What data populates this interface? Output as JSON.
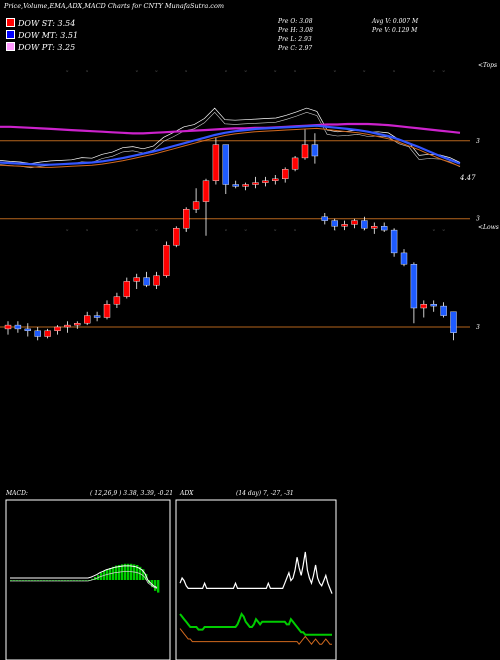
{
  "header": {
    "title": "Price,Volume,EMA,ADX,MACD Charts for CNTY MunafaSutra.com"
  },
  "legend": [
    {
      "label": "DOW ST: 3.54",
      "color": "#ff0000"
    },
    {
      "label": "DOW MT: 3.51",
      "color": "#0000ff"
    },
    {
      "label": "DOW PT: 3.25",
      "color": "#ff99ff"
    }
  ],
  "quote": {
    "open": "Pre   O: 3.08",
    "high": "Pre   H: 3.08",
    "low": "Pre   L: 2.93",
    "close": "Pre   C: 2.97",
    "avg_volume": "Avg V: 0.007 M",
    "pre_volume": "Pre   V: 0.129 M"
  },
  "ema_panel": {
    "top_label": "<Tops",
    "price_label": "4.47"
  },
  "price_panel": {
    "bottom_label": "<Lows",
    "levels": [
      {
        "label": "3",
        "value": 3.98
      },
      {
        "label": "3",
        "value": 3.57
      },
      {
        "label": "3",
        "value": 3.0
      }
    ]
  },
  "macd_panel": {
    "label": "MACD:",
    "params": "( 12,26,9 ) 3.38, 3.39, -0.21"
  },
  "adx_panel": {
    "label": "ADX",
    "params": "(14  day) 7, -27, -31"
  },
  "colors": {
    "up": "#ff0000",
    "down": "#1e5bff",
    "level": "#b5651d",
    "ema_fast": "#3355ff",
    "ema_slow": "#cc22cc",
    "macd_hist": "#00cc00"
  },
  "chart_data": [
    {
      "type": "candlestick",
      "series": [
        {
          "values": [
            [
              2.99,
              3.03,
              2.96,
              3.01
            ],
            [
              3.01,
              3.03,
              2.97,
              2.99
            ],
            [
              2.99,
              3.02,
              2.95,
              2.98
            ],
            [
              2.98,
              3.0,
              2.93,
              2.95
            ],
            [
              2.95,
              2.99,
              2.94,
              2.98
            ],
            [
              2.98,
              3.01,
              2.96,
              3.0
            ],
            [
              3.0,
              3.03,
              2.97,
              3.01
            ],
            [
              3.01,
              3.03,
              2.99,
              3.02
            ],
            [
              3.02,
              3.08,
              3.01,
              3.06
            ],
            [
              3.06,
              3.08,
              3.03,
              3.05
            ],
            [
              3.05,
              3.14,
              3.04,
              3.12
            ],
            [
              3.12,
              3.18,
              3.1,
              3.16
            ],
            [
              3.16,
              3.26,
              3.15,
              3.24
            ],
            [
              3.24,
              3.28,
              3.2,
              3.26
            ],
            [
              3.26,
              3.29,
              3.21,
              3.22
            ],
            [
              3.22,
              3.29,
              3.2,
              3.27
            ],
            [
              3.27,
              3.45,
              3.26,
              3.43
            ],
            [
              3.43,
              3.53,
              3.42,
              3.52
            ],
            [
              3.52,
              3.63,
              3.5,
              3.62
            ],
            [
              3.62,
              3.73,
              3.6,
              3.66
            ],
            [
              3.66,
              3.78,
              3.48,
              3.77
            ],
            [
              3.77,
              4.0,
              3.75,
              3.96
            ],
            [
              3.96,
              3.96,
              3.7,
              3.75
            ],
            [
              3.75,
              3.77,
              3.73,
              3.74
            ],
            [
              3.74,
              3.76,
              3.72,
              3.75
            ],
            [
              3.75,
              3.79,
              3.73,
              3.76
            ],
            [
              3.76,
              3.79,
              3.74,
              3.77
            ],
            [
              3.77,
              3.8,
              3.75,
              3.78
            ],
            [
              3.78,
              3.84,
              3.76,
              3.83
            ],
            [
              3.83,
              3.9,
              3.82,
              3.89
            ],
            [
              3.89,
              4.04,
              3.88,
              3.96
            ],
            [
              3.96,
              4.02,
              3.86,
              3.9
            ],
            [
              3.58,
              3.6,
              3.54,
              3.56
            ],
            [
              3.56,
              3.57,
              3.51,
              3.53
            ],
            [
              3.53,
              3.56,
              3.51,
              3.54
            ],
            [
              3.54,
              3.57,
              3.52,
              3.56
            ],
            [
              3.56,
              3.58,
              3.51,
              3.52
            ],
            [
              3.52,
              3.55,
              3.49,
              3.53
            ],
            [
              3.53,
              3.55,
              3.5,
              3.51
            ],
            [
              3.51,
              3.52,
              3.37,
              3.39
            ],
            [
              3.39,
              3.41,
              3.32,
              3.33
            ],
            [
              3.33,
              3.34,
              3.02,
              3.1
            ],
            [
              3.1,
              3.14,
              3.05,
              3.12
            ],
            [
              3.12,
              3.14,
              3.08,
              3.11
            ],
            [
              3.11,
              3.13,
              3.05,
              3.06
            ],
            [
              3.08,
              3.08,
              2.93,
              2.97
            ]
          ]
        }
      ]
    },
    {
      "type": "line",
      "series": [
        {
          "values": [
            3.1,
            3.09,
            3.08,
            3.07,
            3.06,
            3.06,
            3.07,
            3.08,
            3.09,
            3.1,
            3.12,
            3.15,
            3.18,
            3.22,
            3.26,
            3.3,
            3.35,
            3.4,
            3.45,
            3.5,
            3.55,
            3.6,
            3.64,
            3.67,
            3.69,
            3.71,
            3.72,
            3.73,
            3.74,
            3.75,
            3.76,
            3.77,
            3.75,
            3.73,
            3.71,
            3.69,
            3.66,
            3.62,
            3.58,
            3.52,
            3.45,
            3.38,
            3.3,
            3.22,
            3.15,
            3.08
          ]
        },
        {
          "values": [
            3.75,
            3.75,
            3.74,
            3.73,
            3.72,
            3.71,
            3.7,
            3.69,
            3.68,
            3.67,
            3.66,
            3.65,
            3.64,
            3.63,
            3.63,
            3.64,
            3.65,
            3.66,
            3.67,
            3.68,
            3.69,
            3.7,
            3.71,
            3.72,
            3.72,
            3.73,
            3.73,
            3.74,
            3.75,
            3.76,
            3.77,
            3.78,
            3.79,
            3.79,
            3.8,
            3.8,
            3.8,
            3.79,
            3.78,
            3.76,
            3.74,
            3.72,
            3.7,
            3.68,
            3.66,
            3.64
          ]
        }
      ]
    },
    {
      "type": "bar",
      "series": [
        {
          "values": [
            0.0,
            0.0,
            0.0,
            0.0,
            0.0,
            0.0,
            0.0,
            0.0,
            0.0,
            0.0,
            0.0,
            0.0,
            0.0,
            0.0,
            0.0,
            0.0,
            0.0,
            0.0,
            0.0,
            0.0,
            0.0,
            0.0,
            0.0,
            0.0,
            0.0,
            0.0,
            0.0,
            0.02,
            0.05,
            0.08,
            0.12,
            0.15,
            0.18,
            0.2,
            0.22,
            0.24,
            0.25,
            0.26,
            0.27,
            0.27,
            0.27,
            0.26,
            0.25,
            0.22,
            0.18,
            0.1,
            -0.05,
            -0.12,
            -0.18,
            -0.21
          ]
        }
      ]
    },
    {
      "type": "line",
      "series": [
        {
          "values": [
            28,
            30,
            29,
            27,
            26,
            26,
            26,
            26,
            26,
            26,
            26,
            26,
            28,
            26,
            26,
            26,
            26,
            26,
            26,
            26,
            26,
            26,
            26,
            26,
            26,
            26,
            26,
            28,
            26,
            26,
            26,
            26,
            26,
            26,
            26,
            26,
            26,
            26,
            26,
            26,
            26,
            26,
            26,
            28,
            26,
            26,
            26,
            26,
            26,
            26,
            26,
            28,
            30,
            32,
            29,
            30,
            33,
            38,
            34,
            31,
            35,
            40,
            33,
            30,
            28,
            31,
            35,
            30,
            28,
            27,
            29,
            31,
            28,
            26,
            24
          ]
        },
        {
          "values": [
            10,
            9,
            8,
            7,
            6,
            5,
            5,
            5,
            5,
            4,
            4,
            4,
            5,
            5,
            5,
            5,
            5,
            5,
            5,
            5,
            5,
            5,
            5,
            5,
            5,
            5,
            5,
            5,
            6,
            8,
            10,
            9,
            7,
            6,
            5,
            5,
            6,
            8,
            7,
            6,
            7,
            7,
            7,
            7,
            7,
            7,
            7,
            7,
            7,
            7,
            7,
            7,
            6,
            6,
            8,
            7,
            6,
            5,
            4,
            3,
            3,
            2,
            2,
            2,
            2,
            2,
            2,
            2,
            2,
            2,
            2,
            2,
            2,
            2,
            2
          ]
        },
        {
          "values": [
            9,
            8,
            7,
            6,
            5,
            5,
            4,
            4,
            4,
            4,
            4,
            4,
            4,
            4,
            4,
            4,
            4,
            4,
            4,
            4,
            4,
            4,
            4,
            4,
            4,
            4,
            4,
            4,
            4,
            4,
            4,
            4,
            4,
            4,
            4,
            4,
            4,
            4,
            4,
            4,
            4,
            4,
            4,
            4,
            4,
            4,
            4,
            4,
            4,
            4,
            4,
            4,
            4,
            4,
            4,
            4,
            4,
            4,
            3,
            4,
            5,
            6,
            5,
            4,
            3,
            4,
            5,
            4,
            3,
            3,
            4,
            5,
            4,
            3,
            3
          ]
        }
      ]
    }
  ]
}
